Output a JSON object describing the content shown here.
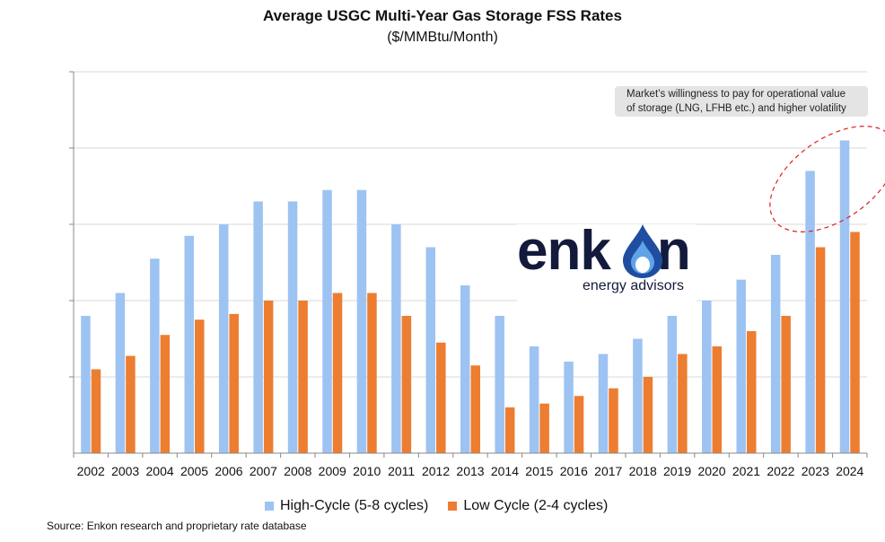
{
  "chart_data": {
    "type": "bar",
    "title": "Average USGC Multi-Year Gas Storage FSS Rates",
    "subtitle": "($/MMBtu/Month)",
    "categories": [
      "2002",
      "2003",
      "2004",
      "2005",
      "2006",
      "2007",
      "2008",
      "2009",
      "2010",
      "2011",
      "2012",
      "2013",
      "2014",
      "2015",
      "2016",
      "2017",
      "2018",
      "2019",
      "2020",
      "2021",
      "2022",
      "2023",
      "2024"
    ],
    "series": [
      {
        "name": "High-Cycle (5-8 cycles)",
        "color": "#9dc3f2",
        "values": [
          3.6,
          4.2,
          5.1,
          5.7,
          6.0,
          6.6,
          6.6,
          6.9,
          6.9,
          6.0,
          5.4,
          4.4,
          3.6,
          2.8,
          2.4,
          2.6,
          3.0,
          3.6,
          4.0,
          4.55,
          5.2,
          7.4,
          8.2
        ]
      },
      {
        "name": "Low Cycle (2-4 cycles)",
        "color": "#ed7d31",
        "values": [
          2.2,
          2.55,
          3.1,
          3.5,
          3.65,
          4.0,
          4.0,
          4.2,
          4.2,
          3.6,
          2.9,
          2.3,
          1.2,
          1.3,
          1.5,
          1.7,
          2.0,
          2.6,
          2.8,
          3.2,
          3.6,
          5.4,
          5.8
        ]
      }
    ],
    "ylim": [
      0,
      10
    ],
    "ytick_step": 2,
    "show_y_tick_labels": false,
    "grid": true,
    "legend_position": "bottom-center",
    "annotations": [
      {
        "text_line1": "Market’s willingness to pay for operational value",
        "text_line2": "of storage (LNG, LFHB etc.) and higher volatility",
        "highlight": "2023-2024 high-cycle bars circled with red dashed ellipse"
      }
    ]
  },
  "logo": {
    "word_prefix": "enk",
    "word_suffix": "n",
    "subtitle": "energy advisors"
  },
  "source_text": "Source:  Enkon research and proprietary rate database"
}
